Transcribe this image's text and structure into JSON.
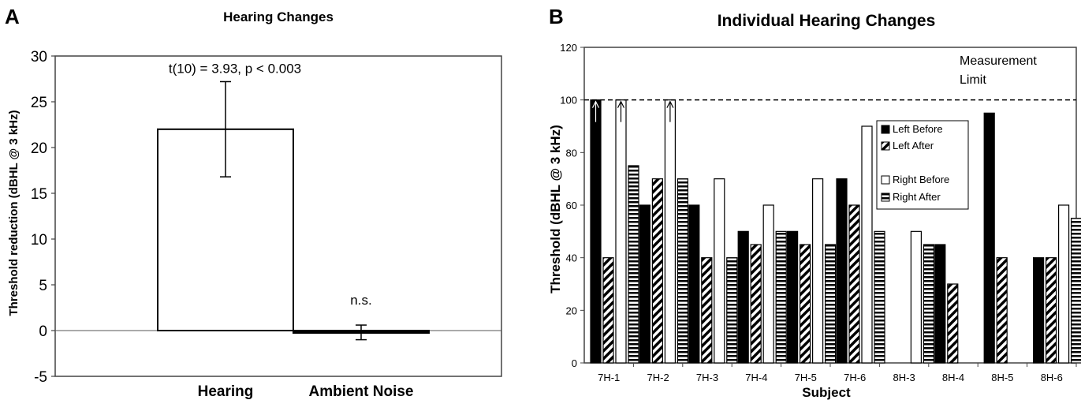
{
  "chart_data": [
    {
      "panel_label": "A",
      "type": "bar",
      "title": "Hearing Changes",
      "xlabel": "",
      "ylabel": "Threshold reduction (dBHL @ 3 kHz)",
      "categories": [
        "Hearing",
        "Ambient Noise"
      ],
      "values": [
        22,
        -0.2
      ],
      "error_bars": [
        {
          "low": 16.8,
          "high": 27.2
        },
        {
          "low": -1.0,
          "high": 0.6
        }
      ],
      "ylim": [
        -5,
        30
      ],
      "yticks": [
        "-5",
        "0",
        "5",
        "10",
        "15",
        "20",
        "25",
        "30"
      ],
      "annotations": [
        "t(10) = 3.93, p < 0.003",
        "n.s."
      ],
      "grid": false
    },
    {
      "panel_label": "B",
      "type": "bar",
      "title": "Individual Hearing Changes",
      "xlabel": "Subject",
      "ylabel": "Threshold (dBHL @ 3 kHz)",
      "categories": [
        "7H-1",
        "7H-2",
        "7H-3",
        "7H-4",
        "7H-5",
        "7H-6",
        "8H-3",
        "8H-4",
        "8H-5",
        "8H-6"
      ],
      "series": [
        {
          "name": "Left Before",
          "values": [
            100,
            60,
            60,
            50,
            50,
            70,
            null,
            45,
            95,
            40
          ]
        },
        {
          "name": "Left After",
          "values": [
            40,
            70,
            40,
            45,
            45,
            60,
            null,
            30,
            40,
            40
          ]
        },
        {
          "name": "Right Before",
          "values": [
            100,
            100,
            70,
            60,
            70,
            90,
            50,
            null,
            null,
            60
          ]
        },
        {
          "name": "Right After",
          "values": [
            75,
            70,
            40,
            50,
            45,
            50,
            45,
            null,
            null,
            55
          ]
        }
      ],
      "ylim": [
        0,
        120
      ],
      "yticks": [
        "0",
        "20",
        "40",
        "60",
        "80",
        "100",
        "120"
      ],
      "reference_line": {
        "value": 100,
        "label_line1": "Measurement",
        "label_line2": "Limit"
      },
      "limit_arrows": [
        "7H-1 Left Before",
        "7H-1 Right Before",
        "7H-2 Right Before"
      ],
      "legend_position": "right",
      "grid": false
    }
  ]
}
